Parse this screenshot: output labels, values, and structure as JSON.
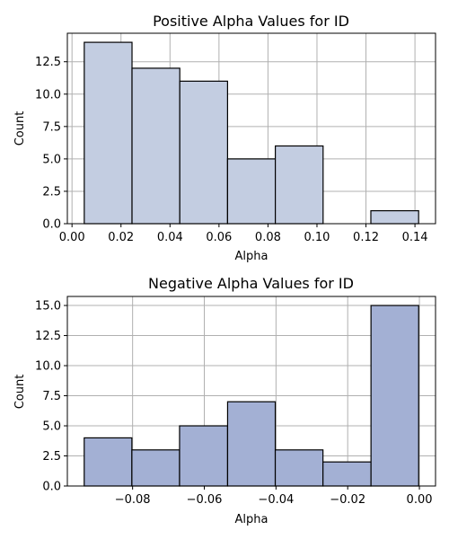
{
  "chart_data": [
    {
      "type": "bar",
      "title": "Positive Alpha Values for ID",
      "xlabel": "Alpha",
      "ylabel": "Count",
      "color": "#c3cde1",
      "bin_edges": [
        0.005,
        0.0245,
        0.044,
        0.0635,
        0.083,
        0.1025,
        0.122,
        0.1415
      ],
      "values": [
        14,
        12,
        11,
        5,
        6,
        0,
        1
      ],
      "xlim": [
        -0.0019,
        0.1484
      ],
      "ylim": [
        0,
        14.7
      ],
      "xticks": [
        0.0,
        0.02,
        0.04,
        0.06,
        0.08,
        0.1,
        0.12,
        0.14
      ],
      "xtick_labels": [
        "0.00",
        "0.02",
        "0.04",
        "0.06",
        "0.08",
        "0.10",
        "0.12",
        "0.14"
      ],
      "yticks": [
        0,
        2.5,
        5,
        7.5,
        10,
        12.5
      ],
      "ytick_labels": [
        "0.0",
        "2.5",
        "5.0",
        "7.5",
        "10.0",
        "12.5"
      ],
      "grid": true
    },
    {
      "type": "bar",
      "title": "Negative Alpha Values for ID",
      "xlabel": "Alpha",
      "ylabel": "Count",
      "color": "#a3b0d4",
      "bin_edges": [
        -0.0935,
        -0.0802,
        -0.0669,
        -0.0535,
        -0.0402,
        -0.0269,
        -0.0135,
        -0.0002
      ],
      "values": [
        4,
        3,
        5,
        7,
        3,
        2,
        15
      ],
      "xlim": [
        -0.0982,
        0.0045
      ],
      "ylim": [
        0,
        15.75
      ],
      "xticks": [
        -0.08,
        -0.06,
        -0.04,
        -0.02,
        0.0
      ],
      "xtick_labels": [
        "−0.08",
        "−0.06",
        "−0.04",
        "−0.02",
        "0.00"
      ],
      "yticks": [
        0,
        2.5,
        5,
        7.5,
        10,
        12.5,
        15
      ],
      "ytick_labels": [
        "0.0",
        "2.5",
        "5.0",
        "7.5",
        "10.0",
        "12.5",
        "15.0"
      ],
      "grid": true
    }
  ]
}
